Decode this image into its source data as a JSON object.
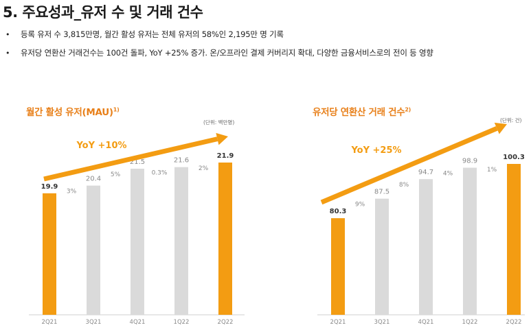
{
  "title": "5. 주요성과_유저 수 및 거래 건수",
  "bullets": [
    "등록 유저 수 3,815만명, 월간 활성 유저는 전체 유저의 58%인 2,195만 명 기록",
    "유저당 연환산 거래건수는 100건 돌파, YoY +25% 증가. 온/오프라인 결제 커버리지 확대, 다양한 금융서비스로의 전이 등 영향"
  ],
  "bullet_symbol": "•",
  "colors": {
    "accent": "#f39c12",
    "accent_title": "#e8801a",
    "bar_gray": "#dadada",
    "bar_orange": "#f39c12"
  },
  "chart_data": [
    {
      "type": "bar",
      "title": "월간 활성 유저(MAU)",
      "footnote": "1)",
      "unit": "(단위: 백만명)",
      "categories": [
        "2Q21",
        "3Q21",
        "4Q21",
        "1Q22",
        "2Q22"
      ],
      "values": [
        19.9,
        20.4,
        21.5,
        21.6,
        21.9
      ],
      "value_labels": [
        "19.9",
        "20.4",
        "21.5",
        "21.6",
        "21.9"
      ],
      "growth_labels": [
        "3%",
        "5%",
        "0.3%",
        "2%"
      ],
      "highlight": [
        true,
        false,
        false,
        false,
        true
      ],
      "yoy_label": "YoY +10%"
    },
    {
      "type": "bar",
      "title": "유저당 연환산 거래 건수",
      "footnote": "2)",
      "unit": "(단위: 건)",
      "categories": [
        "2Q21",
        "3Q21",
        "4Q21",
        "1Q22",
        "2Q22"
      ],
      "values": [
        80.3,
        87.5,
        94.7,
        98.9,
        100.3
      ],
      "value_labels": [
        "80.3",
        "87.5",
        "94.7",
        "98.9",
        "100.3"
      ],
      "growth_labels": [
        "9%",
        "8%",
        "4%",
        "1%"
      ],
      "highlight": [
        true,
        false,
        false,
        false,
        true
      ],
      "yoy_label": "YoY +25%"
    }
  ]
}
